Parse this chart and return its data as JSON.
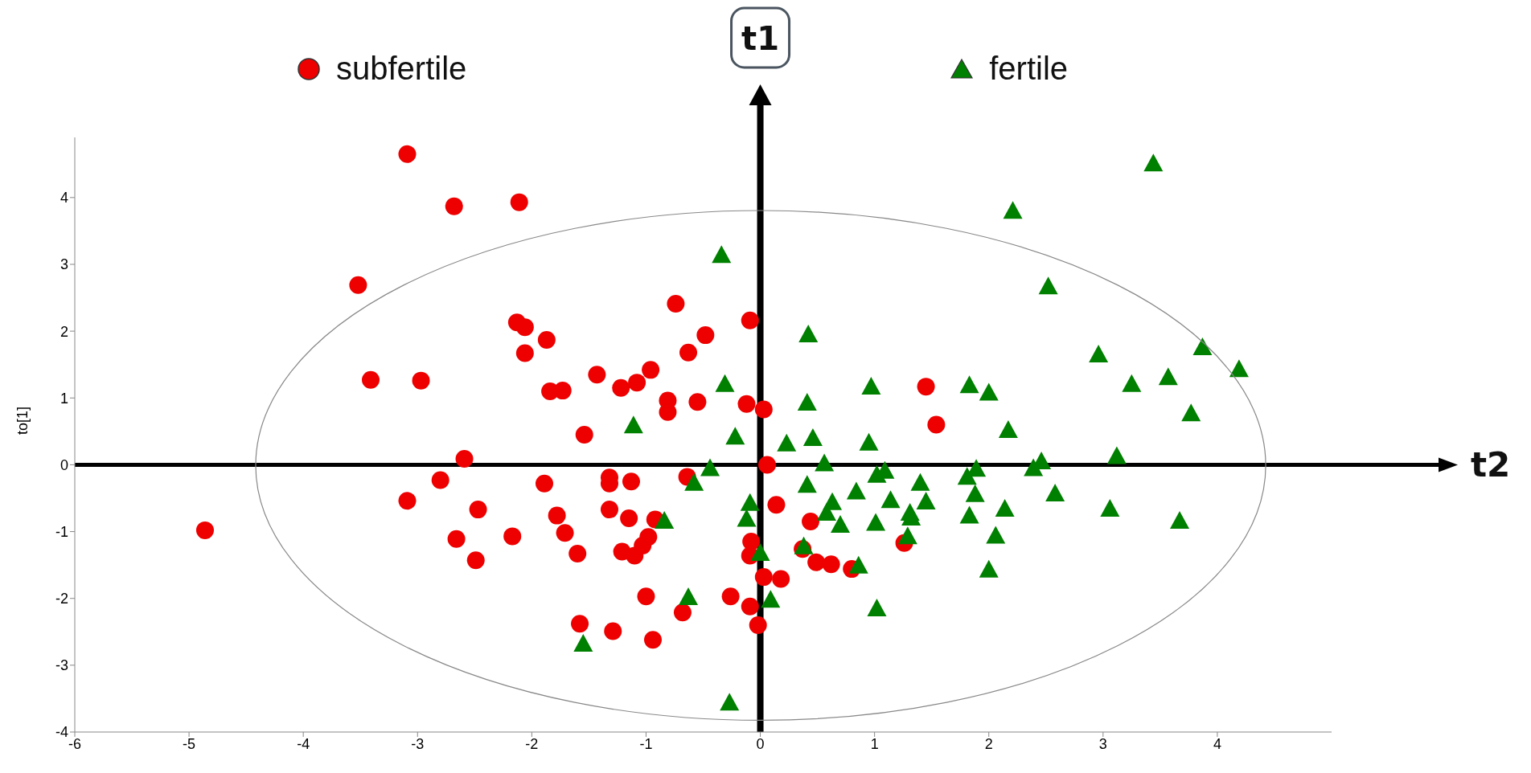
{
  "chart_data": {
    "type": "scatter",
    "ylabel": "to[1]",
    "legend": "top",
    "grid": false,
    "xlim": [
      -6,
      5
    ],
    "xticks": [
      -6,
      -5,
      -4,
      -3,
      -2,
      -1,
      0,
      1,
      2,
      3,
      4
    ],
    "ylim": [
      -4,
      4.9
    ],
    "yticks": [
      -4,
      -3,
      -2,
      -1,
      0,
      1,
      2,
      3,
      4
    ],
    "ref_lines": [
      {
        "axis": "x",
        "value": 0,
        "label": "t1",
        "color": "#000000"
      },
      {
        "axis": "y",
        "value": 0,
        "label": "t2",
        "color": "#000000"
      }
    ],
    "series": [
      {
        "name": "subfertile",
        "color": "#ee0000",
        "marker": "circle",
        "x": [
          -3.09,
          -2.68,
          -2.11,
          -3.52,
          -3.41,
          -2.97,
          -2.13,
          -2.06,
          -2.06,
          -1.87,
          -1.84,
          -1.73,
          -1.54,
          -1.43,
          -1.22,
          -1.08,
          -0.96,
          -0.74,
          -0.63,
          -0.48,
          -0.81,
          -0.81,
          -0.55,
          -0.09,
          -0.12,
          0.03,
          1.45,
          1.54,
          -2.59,
          -2.8,
          -3.09,
          -4.86,
          -2.66,
          -2.47,
          -2.49,
          -2.17,
          -1.89,
          -1.78,
          -1.71,
          -1.6,
          -1.32,
          -1.32,
          -1.32,
          -1.13,
          -1.15,
          -1.21,
          -1.1,
          -1.03,
          -0.98,
          -0.92,
          -0.64,
          -1.0,
          -1.58,
          -1.29,
          -0.94,
          -0.68,
          -0.26,
          -0.09,
          -0.02,
          -0.08,
          -0.09,
          0.06,
          0.14,
          0.44,
          0.37,
          0.49,
          0.62,
          0.8,
          1.26,
          0.03,
          0.18
        ],
        "values": [
          4.65,
          3.87,
          3.93,
          2.69,
          1.27,
          1.26,
          2.13,
          2.06,
          1.67,
          1.87,
          1.1,
          1.11,
          0.45,
          1.35,
          1.15,
          1.23,
          1.42,
          2.41,
          1.68,
          1.94,
          0.96,
          0.79,
          0.94,
          2.16,
          0.91,
          0.83,
          1.17,
          0.6,
          0.09,
          -0.23,
          -0.54,
          -0.98,
          -1.11,
          -0.67,
          -1.43,
          -1.07,
          -0.28,
          -0.76,
          -1.02,
          -1.33,
          -0.19,
          -0.28,
          -0.67,
          -0.25,
          -0.8,
          -1.3,
          -1.36,
          -1.21,
          -1.08,
          -0.82,
          -0.18,
          -1.97,
          -2.38,
          -2.49,
          -2.62,
          -2.21,
          -1.97,
          -2.12,
          -2.4,
          -1.15,
          -1.36,
          0.0,
          -0.6,
          -0.85,
          -1.26,
          -1.46,
          -1.49,
          -1.56,
          -1.17,
          -1.68,
          -1.71
        ]
      },
      {
        "name": "fertile",
        "color": "#008000",
        "marker": "triangle",
        "x": [
          -0.34,
          0.42,
          -0.31,
          0.41,
          0.97,
          -1.11,
          -0.22,
          0.46,
          0.23,
          0.95,
          0.56,
          -0.44,
          -0.58,
          -0.84,
          -0.09,
          -0.12,
          0.41,
          0.63,
          0.58,
          0.7,
          0.84,
          1.02,
          1.09,
          1.14,
          1.4,
          1.45,
          1.31,
          1.32,
          1.01,
          1.29,
          0.38,
          0.86,
          -0.63,
          0.09,
          1.02,
          -1.55,
          -0.27,
          0.0,
          2.21,
          3.44,
          2.52,
          2.96,
          3.87,
          3.57,
          3.25,
          4.19,
          3.77,
          3.12,
          3.06,
          3.67,
          1.83,
          2.0,
          2.17,
          2.46,
          2.39,
          1.89,
          1.81,
          1.88,
          2.14,
          2.58,
          1.83,
          2.06,
          2.0
        ],
        "values": [
          3.13,
          1.94,
          1.2,
          0.92,
          1.16,
          0.58,
          0.41,
          0.39,
          0.31,
          0.32,
          0.01,
          -0.06,
          -0.28,
          -0.85,
          -0.58,
          -0.82,
          -0.31,
          -0.57,
          -0.73,
          -0.91,
          -0.41,
          -0.16,
          -0.1,
          -0.54,
          -0.28,
          -0.56,
          -0.73,
          -0.8,
          -0.88,
          -1.08,
          -1.23,
          -1.52,
          -1.99,
          -2.03,
          -2.16,
          -2.69,
          -3.57,
          -1.33,
          3.79,
          4.5,
          2.66,
          1.64,
          1.75,
          1.3,
          1.2,
          1.42,
          0.76,
          0.12,
          -0.67,
          -0.85,
          1.18,
          1.07,
          0.51,
          0.04,
          -0.06,
          -0.07,
          -0.19,
          -0.45,
          -0.67,
          -0.44,
          -0.77,
          -1.07,
          -1.58
        ]
      }
    ]
  }
}
